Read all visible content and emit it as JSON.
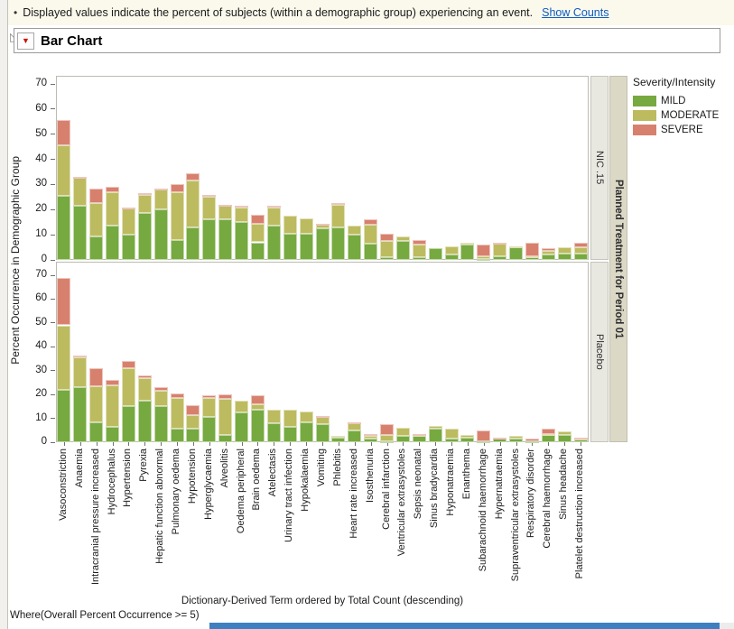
{
  "info_bar": {
    "bullet": "•",
    "text": "Displayed values indicate the percent of subjects (within a demographic group) experiencing an event.",
    "link": "Show Counts"
  },
  "header": {
    "title": "Bar Chart"
  },
  "icons": {
    "disclosure": "◺",
    "menu": "▼"
  },
  "footer": {
    "where_clause": "Where(Overall Percent Occurrence >= 5)"
  },
  "chart_data": {
    "type": "bar",
    "stacked": true,
    "ylabel": "Percent Occurrence in Demographic Group",
    "xlabel": "Dictionary-Derived Term ordered by Total Count (descending)",
    "ylim": [
      0,
      70
    ],
    "yticks": [
      0,
      10,
      20,
      30,
      40,
      50,
      60,
      70
    ],
    "grid": false,
    "legend_title": "Severity/Intensity",
    "legend_position": "right",
    "panel_group_label": "Planned Treatment for Period 01",
    "colors": {
      "MILD": "#76a940",
      "MODERATE": "#bcbb60",
      "SEVERE": "#d8806e"
    },
    "categories": [
      "Vasoconstriction",
      "Anaemia",
      "Intracranial pressure increased",
      "Hydrocephalus",
      "Hypertension",
      "Pyrexia",
      "Hepatic function abnormal",
      "Pulmonary oedema",
      "Hypotension",
      "Hyperglycaemia",
      "Alveolitis",
      "Oedema peripheral",
      "Brain oedema",
      "Atelectasis",
      "Urinary tract infection",
      "Hypokalaemia",
      "Vomiting",
      "Phlebitis",
      "Heart rate increased",
      "Isosthenuria",
      "Cerebral infarction",
      "Ventricular extrasystoles",
      "Sepsis neonatal",
      "Sinus bradycardia",
      "Hyponatraemia",
      "Enanthema",
      "Subarachnoid haemorrhage",
      "Hypernatraemia",
      "Supraventricular extrasystoles",
      "Respiratory disorder",
      "Cerebral haemorrhage",
      "Sinus headache",
      "Platelet destruction increased"
    ],
    "panels": [
      {
        "name": "NIC .15",
        "series": [
          {
            "name": "MILD",
            "values": [
              25.5,
              21.5,
              9.5,
              13.5,
              10,
              18.5,
              20,
              8,
              13,
              16,
              16,
              15,
              7,
              13.5,
              10.5,
              10.5,
              12.5,
              13,
              10,
              6.5,
              1,
              7.5,
              1,
              4.5,
              2,
              6,
              0.5,
              1.5,
              5,
              1,
              2,
              2.5,
              2.5
            ]
          },
          {
            "name": "MODERATE",
            "values": [
              20,
              11,
              13,
              13.5,
              10.5,
              7.5,
              8,
              19,
              18.5,
              9,
              5.5,
              6,
              7.5,
              7.5,
              7,
              6,
              1.5,
              9,
              3.5,
              7.5,
              6.5,
              2,
              5,
              0,
              3.5,
              1,
              1,
              5,
              0.5,
              0.5,
              1.5,
              2.5,
              2.5
            ]
          },
          {
            "name": "SEVERE",
            "values": [
              10,
              0.5,
              6,
              2,
              0.5,
              0.5,
              0.5,
              3,
              3,
              1,
              0.5,
              0.5,
              3.5,
              0.5,
              0,
              0,
              0.5,
              0.5,
              0,
              2,
              3,
              0,
              2,
              0,
              0,
              0,
              4.5,
              0.5,
              0,
              5.5,
              1,
              0,
              2
            ]
          }
        ]
      },
      {
        "name": "Placebo",
        "series": [
          {
            "name": "MILD",
            "values": [
              22,
              23,
              8.5,
              6.5,
              15,
              17.5,
              15,
              5.5,
              5.5,
              10.5,
              3,
              12.5,
              13.5,
              8,
              6.5,
              8.5,
              7.5,
              2,
              5,
              1.5,
              0.5,
              2.5,
              2.5,
              5.5,
              1.5,
              2,
              0.5,
              1.5,
              1.5,
              0.5,
              3,
              3,
              1
            ]
          },
          {
            "name": "MODERATE",
            "values": [
              27,
              12.5,
              15,
              17.5,
              16,
              9.5,
              6.5,
              13,
              6,
              8,
              15,
              5,
              2.5,
              5.5,
              7,
              4.5,
              3,
              0.5,
              3,
              1,
              2.5,
              3.5,
              0.5,
              1.5,
              4,
              1,
              0,
              0,
              1,
              0,
              0.5,
              1.5,
              0.5
            ]
          },
          {
            "name": "SEVERE",
            "values": [
              20,
              1,
              7.5,
              2,
              3,
              1,
              1.5,
              2,
              4,
              1,
              2,
              0,
              3.5,
              0,
              0,
              0,
              0.5,
              0,
              0.5,
              1,
              4.5,
              0,
              0.5,
              0,
              0,
              0,
              4.5,
              0.5,
              0,
              1,
              2,
              0,
              0.5
            ]
          }
        ]
      }
    ]
  }
}
